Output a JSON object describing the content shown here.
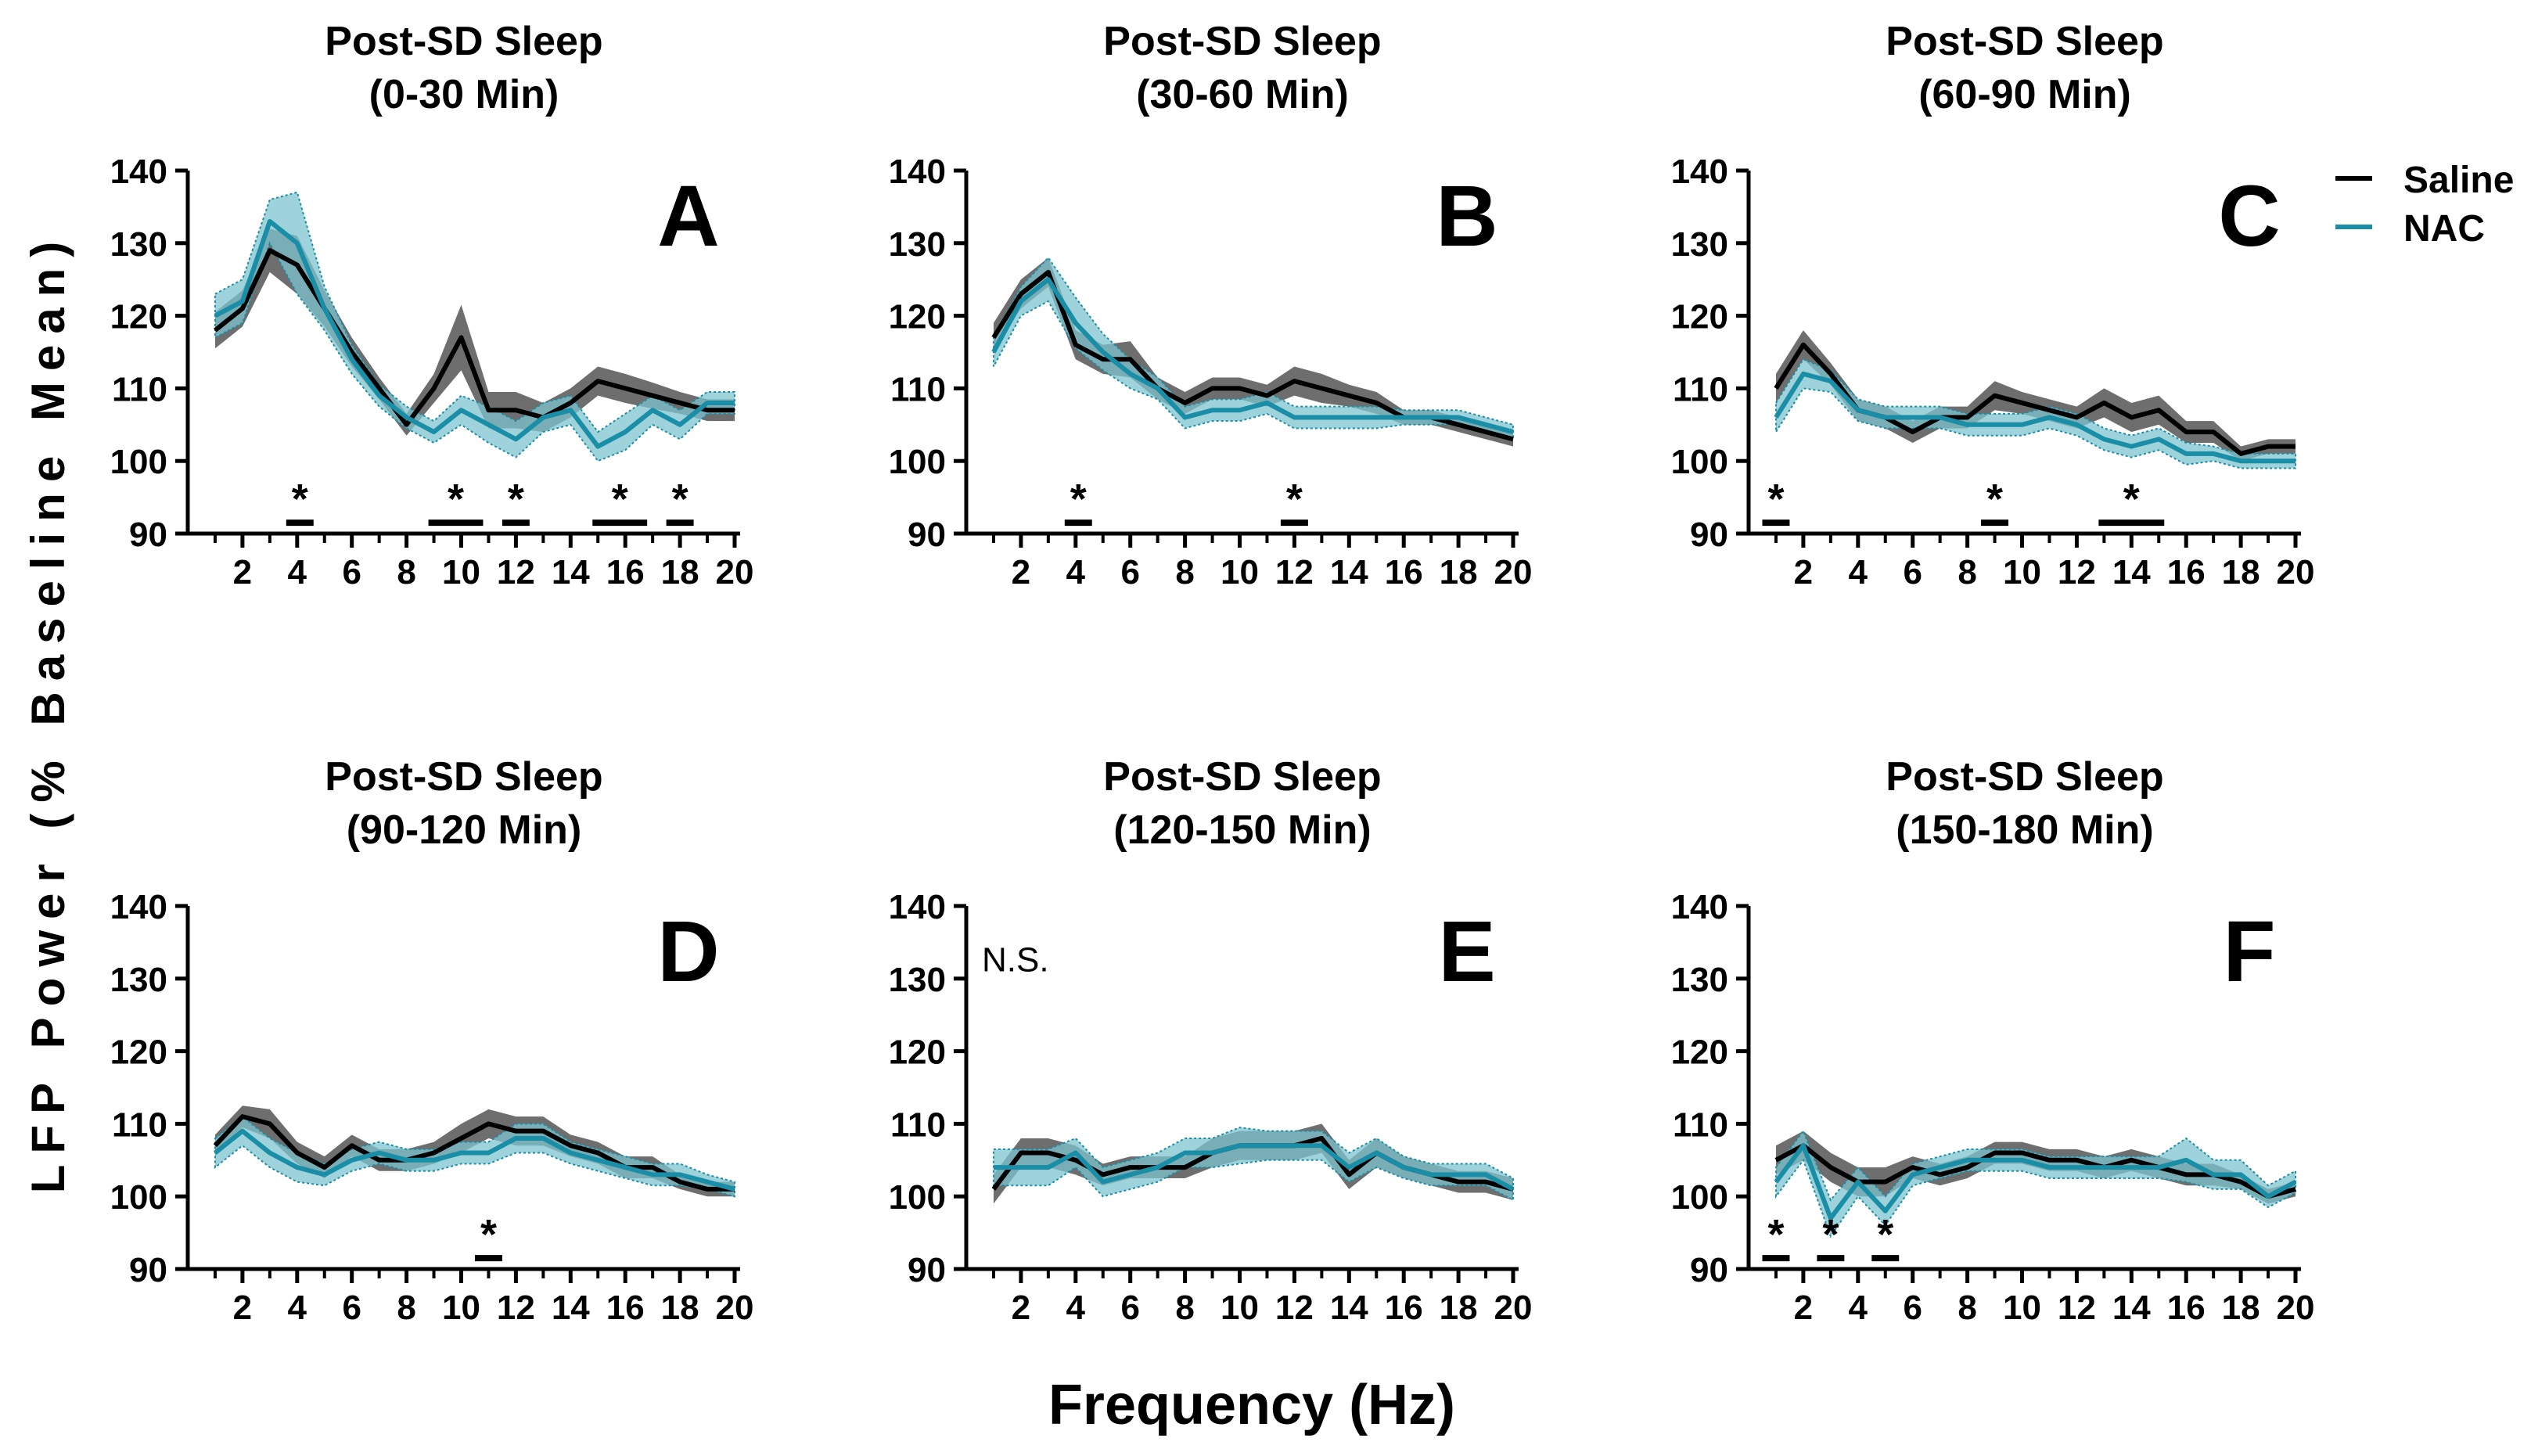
{
  "figure": {
    "ylabel": "LFP Power (% Baseline Mean)",
    "xlabel": "Frequency (Hz)",
    "legend": [
      {
        "name": "Saline",
        "color": "#000000"
      },
      {
        "name": "NAC",
        "color": "#1a8ea6"
      }
    ],
    "colors": {
      "saline_line": "#000000",
      "saline_band": "#6e6e6e",
      "nac_line": "#1a8ea6",
      "nac_band": "#7fc4cf"
    }
  },
  "chart_data": [
    {
      "type": "line",
      "letter": "A",
      "title": [
        "Post-SD Sleep",
        "(0-30 Min)"
      ],
      "note": "",
      "xlim": [
        0,
        20.2
      ],
      "ylim": [
        90,
        140
      ],
      "x": [
        1,
        2,
        3,
        4,
        5,
        6,
        7,
        8,
        9,
        10,
        11,
        12,
        13,
        14,
        15,
        16,
        17,
        18,
        19,
        20
      ],
      "xticks": [
        2,
        4,
        6,
        8,
        10,
        12,
        14,
        16,
        18,
        20
      ],
      "yticks": [
        90,
        100,
        110,
        120,
        130,
        140
      ],
      "series": [
        {
          "name": "Saline",
          "values": [
            118,
            121,
            129,
            127,
            121,
            115,
            110,
            105,
            110,
            117,
            107,
            107,
            106,
            108,
            111,
            110,
            109,
            108,
            107,
            107
          ],
          "sem": [
            2.5,
            2.5,
            3,
            4,
            2.5,
            2,
            1.5,
            1.5,
            2,
            4.5,
            2.5,
            2.5,
            2,
            2,
            2,
            2,
            1.8,
            1.5,
            1.5,
            1.5
          ]
        },
        {
          "name": "NAC",
          "values": [
            120,
            122,
            133,
            130,
            121,
            114,
            109,
            106,
            104,
            107,
            105,
            103,
            106,
            107,
            102,
            104,
            107,
            105,
            108,
            108
          ],
          "sem": [
            3,
            3,
            3,
            7,
            3,
            2,
            1.5,
            1.5,
            1.5,
            2,
            2.5,
            2.5,
            2,
            2,
            2,
            2.5,
            2,
            2,
            1.5,
            1.5
          ]
        }
      ],
      "significance": [
        {
          "from": 3.6,
          "to": 4.6,
          "label": "*"
        },
        {
          "from": 8.8,
          "to": 10.8,
          "label": "*"
        },
        {
          "from": 11.5,
          "to": 12.5,
          "label": "*"
        },
        {
          "from": 14.8,
          "to": 16.8,
          "label": "*"
        },
        {
          "from": 17.5,
          "to": 18.5,
          "label": "*"
        }
      ]
    },
    {
      "type": "line",
      "letter": "B",
      "title": [
        "Post-SD Sleep",
        "(30-60 Min)"
      ],
      "note": "",
      "xlim": [
        0,
        20.2
      ],
      "ylim": [
        90,
        140
      ],
      "x": [
        1,
        2,
        3,
        4,
        5,
        6,
        7,
        8,
        9,
        10,
        11,
        12,
        13,
        14,
        15,
        16,
        17,
        18,
        19,
        20
      ],
      "xticks": [
        2,
        4,
        6,
        8,
        10,
        12,
        14,
        16,
        18,
        20
      ],
      "yticks": [
        90,
        100,
        110,
        120,
        130,
        140
      ],
      "series": [
        {
          "name": "Saline",
          "values": [
            117,
            123,
            126,
            116,
            114,
            114,
            110,
            108,
            110,
            110,
            109,
            111,
            110,
            109,
            108,
            106,
            106,
            105,
            104,
            103
          ],
          "sem": [
            2,
            2,
            2,
            2,
            2,
            2.5,
            1.5,
            1.5,
            1.5,
            1.5,
            1.5,
            2,
            2,
            1.5,
            1.5,
            1,
            1,
            1,
            1,
            1
          ]
        },
        {
          "name": "NAC",
          "values": [
            115,
            122,
            125,
            119,
            115,
            112,
            110,
            106,
            107,
            107,
            108,
            106,
            106,
            106,
            106,
            106,
            106,
            106,
            105,
            104
          ],
          "sem": [
            2,
            2,
            3,
            3.5,
            2.5,
            2,
            1.5,
            1.5,
            1.5,
            1.5,
            1.5,
            1.5,
            1.5,
            1.5,
            1.5,
            1,
            1,
            1,
            1,
            1
          ]
        }
      ],
      "significance": [
        {
          "from": 3.6,
          "to": 4.6,
          "label": "*"
        },
        {
          "from": 11.5,
          "to": 12.5,
          "label": "*"
        }
      ]
    },
    {
      "type": "line",
      "letter": "C",
      "title": [
        "Post-SD Sleep",
        "(60-90 Min)"
      ],
      "note": "",
      "xlim": [
        0,
        20.2
      ],
      "ylim": [
        90,
        140
      ],
      "x": [
        1,
        2,
        3,
        4,
        5,
        6,
        7,
        8,
        9,
        10,
        11,
        12,
        13,
        14,
        15,
        16,
        17,
        18,
        19,
        20
      ],
      "xticks": [
        2,
        4,
        6,
        8,
        10,
        12,
        14,
        16,
        18,
        20
      ],
      "yticks": [
        90,
        100,
        110,
        120,
        130,
        140
      ],
      "series": [
        {
          "name": "Saline",
          "values": [
            110,
            116,
            112,
            107,
            106,
            104,
            106,
            106,
            109,
            108,
            107,
            106,
            108,
            106,
            107,
            104,
            104,
            101,
            102,
            102
          ],
          "sem": [
            2,
            2,
            1.5,
            1.5,
            1.5,
            1.5,
            1.5,
            1.5,
            2,
            1.5,
            1.5,
            1.5,
            2,
            2,
            2,
            1.5,
            1.5,
            1,
            1,
            1
          ]
        },
        {
          "name": "NAC",
          "values": [
            106,
            112,
            111,
            107,
            106,
            106,
            106,
            105,
            105,
            105,
            106,
            105,
            103,
            102,
            103,
            101,
            101,
            100,
            100,
            100
          ],
          "sem": [
            2,
            2,
            1.5,
            1.5,
            1.5,
            1.5,
            1.5,
            1.5,
            1.5,
            1.5,
            1.5,
            1.5,
            1.5,
            1.5,
            1.5,
            1.5,
            1,
            1,
            1,
            1
          ]
        }
      ],
      "significance": [
        {
          "from": 0.5,
          "to": 1.5,
          "label": "*"
        },
        {
          "from": 8.5,
          "to": 9.5,
          "label": "*"
        },
        {
          "from": 12.8,
          "to": 15.2,
          "label": "*"
        }
      ]
    },
    {
      "type": "line",
      "letter": "D",
      "title": [
        "Post-SD Sleep",
        "(90-120 Min)"
      ],
      "note": "",
      "xlim": [
        0,
        20.2
      ],
      "ylim": [
        90,
        140
      ],
      "x": [
        1,
        2,
        3,
        4,
        5,
        6,
        7,
        8,
        9,
        10,
        11,
        12,
        13,
        14,
        15,
        16,
        17,
        18,
        19,
        20
      ],
      "xticks": [
        2,
        4,
        6,
        8,
        10,
        12,
        14,
        16,
        18,
        20
      ],
      "yticks": [
        90,
        100,
        110,
        120,
        130,
        140
      ],
      "series": [
        {
          "name": "Saline",
          "values": [
            107,
            111,
            110,
            106,
            104,
            107,
            105,
            105,
            106,
            108,
            110,
            109,
            109,
            107,
            106,
            104,
            104,
            102,
            101,
            101
          ],
          "sem": [
            1.5,
            1.5,
            2,
            1.5,
            1.5,
            1.5,
            1.5,
            1.5,
            1.5,
            2,
            2,
            2,
            2,
            1.5,
            1.5,
            1.5,
            1.5,
            1,
            1,
            1
          ]
        },
        {
          "name": "NAC",
          "values": [
            106,
            109,
            106,
            104,
            103,
            105,
            106,
            105,
            105,
            106,
            106,
            108,
            108,
            106,
            105,
            104,
            103,
            103,
            102,
            101
          ],
          "sem": [
            2,
            2,
            2,
            2,
            1.5,
            1.5,
            1.5,
            1.5,
            1.5,
            1.5,
            1.5,
            2,
            2,
            1.5,
            1.5,
            1.5,
            1.5,
            1.5,
            1,
            1
          ]
        }
      ],
      "significance": [
        {
          "from": 10.5,
          "to": 11.5,
          "label": "*"
        }
      ]
    },
    {
      "type": "line",
      "letter": "E",
      "title": [
        "Post-SD Sleep",
        "(120-150 Min)"
      ],
      "note": "N.S.",
      "xlim": [
        0,
        20.2
      ],
      "ylim": [
        90,
        140
      ],
      "x": [
        1,
        2,
        3,
        4,
        5,
        6,
        7,
        8,
        9,
        10,
        11,
        12,
        13,
        14,
        15,
        16,
        17,
        18,
        19,
        20
      ],
      "xticks": [
        2,
        4,
        6,
        8,
        10,
        12,
        14,
        16,
        18,
        20
      ],
      "yticks": [
        90,
        100,
        110,
        120,
        130,
        140
      ],
      "series": [
        {
          "name": "Saline",
          "values": [
            101,
            106,
            106,
            105,
            103,
            104,
            104,
            104,
            106,
            107,
            107,
            107,
            108,
            103,
            106,
            104,
            103,
            102,
            102,
            101
          ],
          "sem": [
            2,
            2,
            2,
            2,
            1.5,
            1.5,
            1.5,
            1.5,
            2,
            2,
            2,
            2,
            2,
            2,
            2,
            1.5,
            1.5,
            1.5,
            1.5,
            1.5
          ]
        },
        {
          "name": "NAC",
          "values": [
            104,
            104,
            104,
            106,
            102,
            103,
            104,
            106,
            106,
            107,
            107,
            107,
            107,
            104,
            106,
            104,
            103,
            103,
            103,
            101
          ],
          "sem": [
            2.5,
            2.5,
            2.5,
            2,
            2,
            2,
            2,
            2,
            2,
            2.5,
            2,
            2,
            2,
            2,
            2,
            1.5,
            1.5,
            1.5,
            1.5,
            1.5
          ]
        }
      ],
      "significance": []
    },
    {
      "type": "line",
      "letter": "F",
      "title": [
        "Post-SD Sleep",
        "(150-180 Min)"
      ],
      "note": "",
      "xlim": [
        0,
        20.2
      ],
      "ylim": [
        90,
        140
      ],
      "x": [
        1,
        2,
        3,
        4,
        5,
        6,
        7,
        8,
        9,
        10,
        11,
        12,
        13,
        14,
        15,
        16,
        17,
        18,
        19,
        20
      ],
      "xticks": [
        2,
        4,
        6,
        8,
        10,
        12,
        14,
        16,
        18,
        20
      ],
      "yticks": [
        90,
        100,
        110,
        120,
        130,
        140
      ],
      "series": [
        {
          "name": "Saline",
          "values": [
            105,
            107,
            104,
            102,
            102,
            104,
            103,
            104,
            106,
            106,
            105,
            105,
            104,
            105,
            104,
            103,
            103,
            102,
            100,
            101
          ],
          "sem": [
            2,
            2,
            2,
            2,
            2,
            1.5,
            1.5,
            1.5,
            1.5,
            1.5,
            1.5,
            1.5,
            1.5,
            1.5,
            1.5,
            1.5,
            1.5,
            1,
            1,
            1
          ]
        },
        {
          "name": "NAC",
          "values": [
            102,
            107,
            97,
            102,
            98,
            103,
            104,
            105,
            105,
            105,
            104,
            104,
            104,
            104,
            104,
            105,
            103,
            103,
            100,
            102
          ],
          "sem": [
            2,
            2,
            2.5,
            2,
            2,
            1.5,
            1.5,
            1.5,
            1.5,
            1.5,
            1.5,
            1.5,
            1.5,
            1.5,
            1.5,
            3,
            2,
            2,
            1.5,
            1.5
          ]
        }
      ],
      "significance": [
        {
          "from": 0.5,
          "to": 1.5,
          "label": "*"
        },
        {
          "from": 2.5,
          "to": 3.5,
          "label": "*"
        },
        {
          "from": 4.5,
          "to": 5.5,
          "label": "*"
        }
      ]
    }
  ]
}
